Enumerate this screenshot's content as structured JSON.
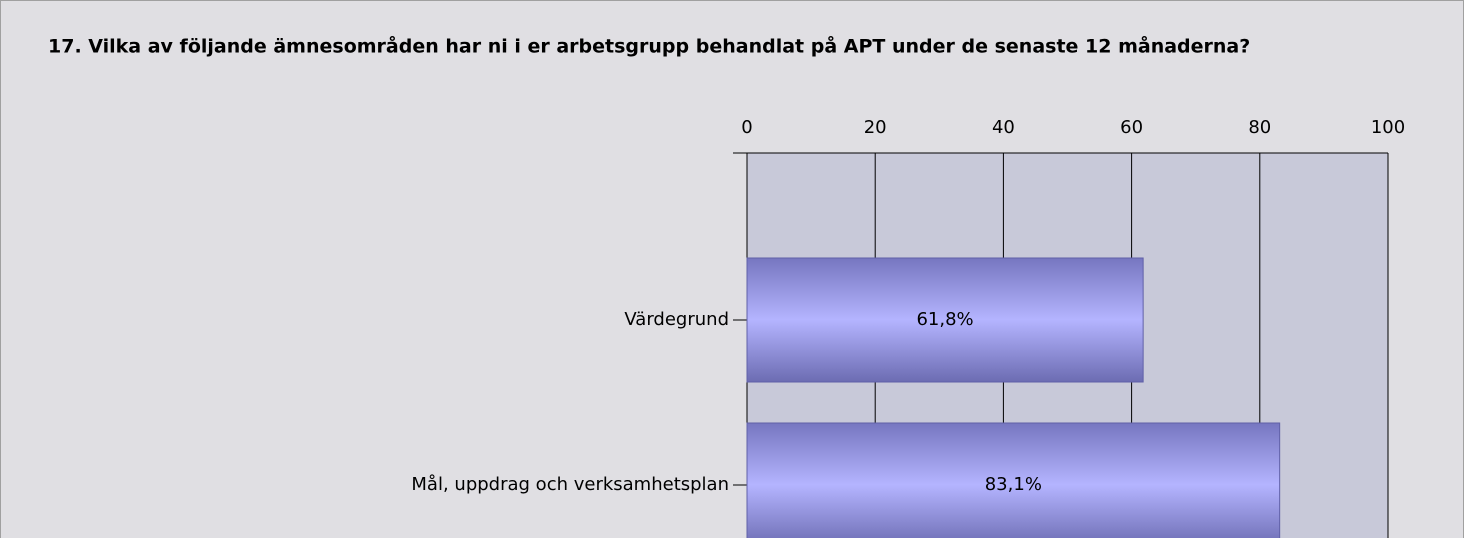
{
  "chart_data": {
    "type": "bar",
    "orientation": "horizontal",
    "title": "17. Vilka av följande ämnesområden har ni i er arbetsgrupp behandlat på APT under de senaste 12 månaderna?",
    "categories": [
      "Värdegrund",
      "Mål, uppdrag och verksamhetsplan"
    ],
    "values": [
      61.8,
      83.1
    ],
    "value_labels": [
      "61,8%",
      "83,1%"
    ],
    "color": "#b0b0ff",
    "xlim": [
      0,
      100
    ],
    "xticks": [
      0,
      20,
      40,
      60,
      80,
      100
    ],
    "grid": true
  }
}
